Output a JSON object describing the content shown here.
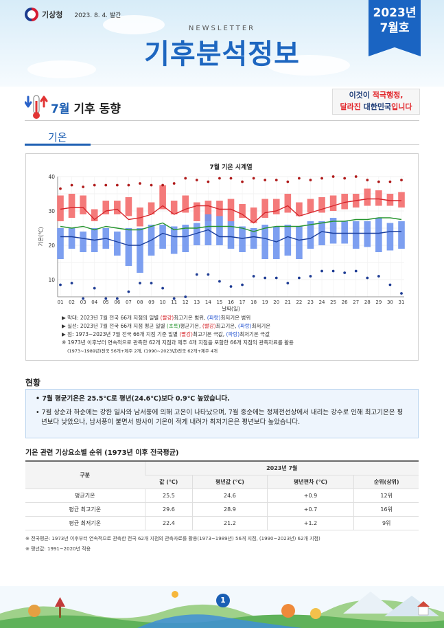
{
  "header": {
    "agency": "기상청",
    "issue_date": "2023. 8. 4. 발간",
    "newsletter_label": "NEWSLETTER",
    "title": "기후분석정보",
    "issue_year": "2023년",
    "issue_month": "7월호"
  },
  "section": {
    "month": "7월",
    "title": "기후 동향",
    "banner_line1_a": "이것이 ",
    "banner_line1_b": "적극행정,",
    "banner_line2_a": "달라진 ",
    "banner_line2_b": "대한민국",
    "banner_line2_c": "입니다"
  },
  "subsection_title": "기온",
  "chart_data": {
    "type": "bar",
    "title": "7월 기온 시계열",
    "xlabel": "날짜(일)",
    "ylabel": "기온(℃)",
    "ylim": [
      5,
      40
    ],
    "yticks": [
      10,
      20,
      30,
      40
    ],
    "categories": [
      "01",
      "02",
      "03",
      "04",
      "05",
      "06",
      "07",
      "08",
      "09",
      "10",
      "11",
      "12",
      "13",
      "14",
      "15",
      "16",
      "17",
      "18",
      "19",
      "20",
      "21",
      "22",
      "23",
      "24",
      "25",
      "26",
      "27",
      "28",
      "29",
      "30",
      "31"
    ],
    "series": [
      {
        "name": "평년 최고기온 범위",
        "color": "#f36b6b",
        "low": [
          27.0,
          28.0,
          29.0,
          27.0,
          29.0,
          29.0,
          28.5,
          25.5,
          29.0,
          30.5,
          29.0,
          29.5,
          27.0,
          27.0,
          28.5,
          27.0,
          28.0,
          26.5,
          28.0,
          29.0,
          29.5,
          28.5,
          29.5,
          29.5,
          30.0,
          30.5,
          31.0,
          31.5,
          31.5,
          31.5,
          31.0
        ],
        "high": [
          34.5,
          35.0,
          34.5,
          30.5,
          33.0,
          33.0,
          34.0,
          31.0,
          32.5,
          37.5,
          33.0,
          34.5,
          32.5,
          33.0,
          33.0,
          33.5,
          32.0,
          31.0,
          33.5,
          33.5,
          35.0,
          32.5,
          33.5,
          34.0,
          34.5,
          35.0,
          35.0,
          36.5,
          36.0,
          35.0,
          35.5
        ]
      },
      {
        "name": "평년 최저기온 범위",
        "color": "#6f95ee",
        "low": [
          16.0,
          19.0,
          18.0,
          18.0,
          19.0,
          17.0,
          14.0,
          12.0,
          17.0,
          19.0,
          17.5,
          18.0,
          20.0,
          20.0,
          20.0,
          19.0,
          18.0,
          19.0,
          16.0,
          16.0,
          17.0,
          16.0,
          19.0,
          20.0,
          20.5,
          20.5,
          19.0,
          19.5,
          18.0,
          18.5,
          19.0
        ],
        "high": [
          25.0,
          25.0,
          24.0,
          25.0,
          25.0,
          24.0,
          25.0,
          25.0,
          26.0,
          26.0,
          25.5,
          26.0,
          26.5,
          29.0,
          28.5,
          27.0,
          25.5,
          25.0,
          26.0,
          25.5,
          26.0,
          25.5,
          27.0,
          27.0,
          28.0,
          27.0,
          27.0,
          27.0,
          28.0,
          26.5,
          27.0
        ]
      },
      {
        "name": "최고기온",
        "color": "#d6262b",
        "values": [
          30.5,
          31.0,
          31.0,
          27.5,
          30.0,
          30.5,
          27.5,
          28.0,
          29.0,
          31.5,
          29.0,
          30.5,
          31.5,
          31.5,
          30.5,
          30.5,
          29.0,
          26.5,
          29.5,
          30.0,
          31.5,
          28.5,
          29.5,
          30.5,
          31.5,
          32.5,
          33.0,
          33.5,
          33.5,
          33.0,
          33.0
        ]
      },
      {
        "name": "평균기온",
        "color": "#27952f",
        "values": [
          25.5,
          25.0,
          25.5,
          24.5,
          25.5,
          25.0,
          24.5,
          24.5,
          25.5,
          26.5,
          24.5,
          25.0,
          25.0,
          25.5,
          25.5,
          25.5,
          25.0,
          24.0,
          25.0,
          25.5,
          25.5,
          25.5,
          26.0,
          26.5,
          27.0,
          27.0,
          27.5,
          27.5,
          28.0,
          28.0,
          27.5
        ]
      },
      {
        "name": "최저기온",
        "color": "#1b3f9e",
        "values": [
          22.5,
          22.5,
          22.0,
          21.5,
          22.0,
          21.0,
          20.0,
          20.0,
          21.5,
          23.5,
          22.5,
          22.5,
          23.5,
          24.5,
          22.5,
          22.5,
          22.0,
          22.5,
          22.0,
          21.0,
          22.5,
          21.5,
          22.0,
          24.0,
          23.5,
          23.5,
          23.5,
          23.5,
          23.5,
          24.0,
          24.0
        ]
      },
      {
        "name": "최고기온 극값",
        "color": "#b01b1b",
        "values": [
          36.5,
          37.5,
          37.0,
          37.5,
          37.5,
          37.5,
          37.5,
          38.0,
          37.5,
          37.5,
          38.0,
          39.5,
          39.0,
          38.5,
          39.5,
          39.5,
          38.5,
          39.5,
          39.0,
          39.0,
          38.5,
          39.5,
          39.0,
          39.5,
          40.0,
          39.5,
          40.0,
          39.0,
          38.5,
          38.5,
          39.0
        ]
      },
      {
        "name": "최저기온 극값",
        "color": "#1e3c94",
        "values": [
          8.5,
          9.0,
          4.5,
          7.5,
          4.5,
          4.5,
          6.5,
          9.0,
          9.0,
          7.5,
          4.5,
          5.0,
          11.5,
          11.5,
          9.5,
          8.0,
          8.5,
          11.0,
          10.5,
          10.5,
          9.0,
          10.5,
          11.0,
          12.5,
          12.5,
          12.0,
          12.5,
          10.5,
          11.0,
          8.5,
          6.0
        ]
      }
    ]
  },
  "notes": {
    "n1_a": "▶ 막대: 2023년 7월 전국 66개 지점의 일별 ",
    "n1_red": "(빨강)",
    "n1_b": "최고기온 범위, ",
    "n1_blue": "(파랑)",
    "n1_c": "최저기온 범위",
    "n2_a": "▶ 실선: 2023년 7월 전국 66개 지점 평균 일별 ",
    "n2_green": "(초록)",
    "n2_b": "평균기온, ",
    "n2_red": "(빨강)",
    "n2_c": "최고기온, ",
    "n2_blue": "(파랑)",
    "n2_d": "최저기온",
    "n3_a": "▶ 점: 1973~2023년 7월 전국 66개 지점 기준 일별 ",
    "n3_red": "(빨강)",
    "n3_b": "최고기온 극값, ",
    "n3_blue": "(파랑)",
    "n3_c": "최저기온 극값",
    "n4": "※ 1973년 이후부터 연속적으로 관측한 62개 지점과 제주 4개 지점을 포함한 66개 지점의 관측자료를 활용",
    "n5": "(1973~1989년)전국 56개+제주 2개, (1990~2023년)전국 62개+제주 4개"
  },
  "status": {
    "title": "현황",
    "bullet1": "• 7월 평균기온은 25.5℃로 평년(24.6℃)보다 0.9℃ 높았습니다.",
    "bullet2": "• 7월 상순과 하순에는 강한 일사와 남서풍에 의해 고온이 나타났으며, 7월 중순에는 정체전선상에서 내리는 강수로 인해 최고기온은 평년보다 낮았으나, 남서풍이 불면서 밤사이 기온이 적게 내려가 최저기온은 평년보다 높았습니다."
  },
  "table": {
    "title": "기온 관련 기상요소별 순위 (1973년 이후 전국평균)",
    "col_group": "구분",
    "col_period": "2023년 7월",
    "columns": [
      "값 (℃)",
      "평년값 (℃)",
      "평년편차 (℃)",
      "순위(상위)"
    ],
    "rows": [
      {
        "label": "평균기온",
        "cells": [
          "25.5",
          "24.6",
          "+0.9",
          "12위"
        ]
      },
      {
        "label": "평균 최고기온",
        "cells": [
          "29.6",
          "28.9",
          "+0.7",
          "16위"
        ]
      },
      {
        "label": "평균 최저기온",
        "cells": [
          "22.4",
          "21.2",
          "+1.2",
          "9위"
        ]
      }
    ]
  },
  "footnotes": {
    "f1": "※ 전국평균: 1973년 이후부터 연속적으로 관측한 전국 62개 지점의 관측자료를 활용(1973~1989년) 56개 지점, (1990~2023년) 62개 지점)",
    "f2": "※ 평년값: 1991~2020년 적용"
  },
  "page_number": "1"
}
